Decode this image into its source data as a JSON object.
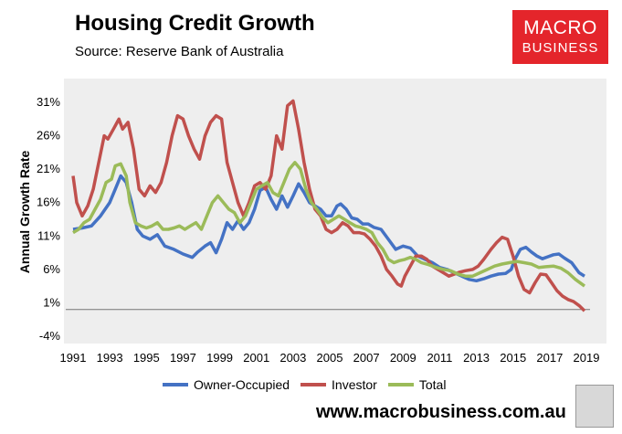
{
  "header": {
    "title": "Housing Credit Growth",
    "subtitle": "Source: Reserve Bank of Australia"
  },
  "logo": {
    "line1": "MACRO",
    "line2": "BUSINESS",
    "color": "#e4252b"
  },
  "footer": {
    "url": "www.macrobusiness.com.au",
    "icon": "wolf-icon"
  },
  "chart_data": {
    "type": "line",
    "title": "Housing Credit Growth",
    "ylabel": "Annual Growth Rate",
    "xlabel": "",
    "ylim": [
      -4,
      33
    ],
    "xlim": [
      1991,
      2019
    ],
    "yticks": [
      -4,
      1,
      6,
      11,
      16,
      21,
      26,
      31
    ],
    "ytick_labels": [
      "-4%",
      "1%",
      "6%",
      "11%",
      "16%",
      "21%",
      "26%",
      "31%"
    ],
    "xticks": [
      1991,
      1993,
      1995,
      1997,
      1999,
      2001,
      2003,
      2005,
      2007,
      2009,
      2011,
      2013,
      2015,
      2017,
      2019
    ],
    "xtick_labels": [
      "1991",
      "1993",
      "1995",
      "1997",
      "1999",
      "2001",
      "2003",
      "2005",
      "2007",
      "2009",
      "2011",
      "2013",
      "2015",
      "2017",
      "2019"
    ],
    "legend_position": "bottom",
    "series": [
      {
        "name": "Owner-Occupied",
        "color": "#4472c4",
        "points": [
          [
            1991,
            12
          ],
          [
            1991.5,
            12.2
          ],
          [
            1992,
            12.5
          ],
          [
            1992.5,
            14
          ],
          [
            1993,
            16
          ],
          [
            1993.3,
            18
          ],
          [
            1993.6,
            20
          ],
          [
            1993.9,
            19
          ],
          [
            1994.2,
            16
          ],
          [
            1994.5,
            12
          ],
          [
            1994.8,
            11
          ],
          [
            1995.2,
            10.5
          ],
          [
            1995.6,
            11.2
          ],
          [
            1996,
            9.5
          ],
          [
            1996.5,
            9
          ],
          [
            1997,
            8.3
          ],
          [
            1997.5,
            7.8
          ],
          [
            1997.8,
            8.6
          ],
          [
            1998.2,
            9.5
          ],
          [
            1998.5,
            10
          ],
          [
            1998.8,
            8.5
          ],
          [
            1999.1,
            10.5
          ],
          [
            1999.4,
            13
          ],
          [
            1999.7,
            12
          ],
          [
            2000,
            13.3
          ],
          [
            2000.3,
            12
          ],
          [
            2000.6,
            13
          ],
          [
            2000.9,
            15
          ],
          [
            2001.2,
            17.8
          ],
          [
            2001.5,
            18.3
          ],
          [
            2001.8,
            16.5
          ],
          [
            2002.1,
            15
          ],
          [
            2002.4,
            17
          ],
          [
            2002.7,
            15.3
          ],
          [
            2003,
            17
          ],
          [
            2003.3,
            18.8
          ],
          [
            2003.6,
            17.5
          ],
          [
            2003.9,
            16
          ],
          [
            2004.2,
            15.5
          ],
          [
            2004.5,
            15
          ],
          [
            2004.8,
            14
          ],
          [
            2005.1,
            14
          ],
          [
            2005.4,
            15.5
          ],
          [
            2005.6,
            15.8
          ],
          [
            2005.9,
            15
          ],
          [
            2006.2,
            13.7
          ],
          [
            2006.5,
            13.5
          ],
          [
            2006.8,
            12.8
          ],
          [
            2007.1,
            12.8
          ],
          [
            2007.4,
            12.3
          ],
          [
            2007.8,
            12
          ],
          [
            2008.2,
            10.5
          ],
          [
            2008.6,
            9
          ],
          [
            2009,
            9.5
          ],
          [
            2009.4,
            9.2
          ],
          [
            2009.8,
            8
          ],
          [
            2010.2,
            7.5
          ],
          [
            2010.6,
            7
          ],
          [
            2011,
            6.3
          ],
          [
            2011.4,
            6
          ],
          [
            2011.8,
            5.5
          ],
          [
            2012.2,
            5
          ],
          [
            2012.6,
            4.5
          ],
          [
            2013,
            4.3
          ],
          [
            2013.4,
            4.6
          ],
          [
            2013.8,
            5
          ],
          [
            2014.2,
            5.3
          ],
          [
            2014.6,
            5.4
          ],
          [
            2014.9,
            6
          ],
          [
            2015.1,
            7.5
          ],
          [
            2015.4,
            9
          ],
          [
            2015.7,
            9.3
          ],
          [
            2016,
            8.6
          ],
          [
            2016.3,
            8
          ],
          [
            2016.6,
            7.6
          ],
          [
            2016.9,
            7.9
          ],
          [
            2017.2,
            8.2
          ],
          [
            2017.5,
            8.3
          ],
          [
            2017.8,
            7.7
          ],
          [
            2018.2,
            7
          ],
          [
            2018.6,
            5.5
          ],
          [
            2018.9,
            5
          ]
        ]
      },
      {
        "name": "Investor",
        "color": "#c0504d",
        "points": [
          [
            1991,
            20
          ],
          [
            1991.2,
            16
          ],
          [
            1991.5,
            14
          ],
          [
            1991.8,
            15.5
          ],
          [
            1992.1,
            18
          ],
          [
            1992.4,
            22
          ],
          [
            1992.7,
            26
          ],
          [
            1992.9,
            25.5
          ],
          [
            1993.2,
            27
          ],
          [
            1993.5,
            28.5
          ],
          [
            1993.7,
            27
          ],
          [
            1994,
            28
          ],
          [
            1994.3,
            24
          ],
          [
            1994.6,
            18
          ],
          [
            1994.9,
            17
          ],
          [
            1995.2,
            18.5
          ],
          [
            1995.5,
            17.5
          ],
          [
            1995.8,
            19
          ],
          [
            1996.1,
            22
          ],
          [
            1996.4,
            26
          ],
          [
            1996.7,
            29
          ],
          [
            1997,
            28.5
          ],
          [
            1997.3,
            26
          ],
          [
            1997.6,
            24
          ],
          [
            1997.9,
            22.5
          ],
          [
            1998.2,
            26
          ],
          [
            1998.5,
            28
          ],
          [
            1998.8,
            29
          ],
          [
            1999.1,
            28.5
          ],
          [
            1999.4,
            22
          ],
          [
            1999.7,
            19
          ],
          [
            2000,
            16
          ],
          [
            2000.3,
            14
          ],
          [
            2000.6,
            16
          ],
          [
            2000.9,
            18.5
          ],
          [
            2001.2,
            19
          ],
          [
            2001.5,
            18
          ],
          [
            2001.8,
            20
          ],
          [
            2002.1,
            26
          ],
          [
            2002.4,
            24
          ],
          [
            2002.7,
            30.5
          ],
          [
            2003,
            31.2
          ],
          [
            2003.3,
            27
          ],
          [
            2003.6,
            22
          ],
          [
            2003.9,
            18
          ],
          [
            2004.2,
            15
          ],
          [
            2004.5,
            14
          ],
          [
            2004.8,
            12
          ],
          [
            2005.1,
            11.5
          ],
          [
            2005.4,
            12
          ],
          [
            2005.7,
            13
          ],
          [
            2006,
            12.5
          ],
          [
            2006.3,
            11.5
          ],
          [
            2006.6,
            11.5
          ],
          [
            2006.9,
            11.3
          ],
          [
            2007.2,
            10.5
          ],
          [
            2007.5,
            9.5
          ],
          [
            2007.8,
            8
          ],
          [
            2008.1,
            6
          ],
          [
            2008.4,
            5
          ],
          [
            2008.7,
            3.8
          ],
          [
            2008.9,
            3.5
          ],
          [
            2009.1,
            5
          ],
          [
            2009.4,
            6.5
          ],
          [
            2009.7,
            8
          ],
          [
            2010,
            8
          ],
          [
            2010.3,
            7.5
          ],
          [
            2010.6,
            6.5
          ],
          [
            2010.9,
            6
          ],
          [
            2011.2,
            5.5
          ],
          [
            2011.5,
            5
          ],
          [
            2011.8,
            5.3
          ],
          [
            2012.1,
            5.6
          ],
          [
            2012.4,
            5.8
          ],
          [
            2012.8,
            6
          ],
          [
            2013.1,
            6.5
          ],
          [
            2013.4,
            7.5
          ],
          [
            2013.8,
            9
          ],
          [
            2014.1,
            10
          ],
          [
            2014.4,
            10.8
          ],
          [
            2014.7,
            10.5
          ],
          [
            2015,
            8
          ],
          [
            2015.3,
            5
          ],
          [
            2015.6,
            3
          ],
          [
            2015.9,
            2.5
          ],
          [
            2016.2,
            4
          ],
          [
            2016.5,
            5.3
          ],
          [
            2016.8,
            5.2
          ],
          [
            2017.1,
            4
          ],
          [
            2017.4,
            2.8
          ],
          [
            2017.7,
            2
          ],
          [
            2018,
            1.5
          ],
          [
            2018.3,
            1.2
          ],
          [
            2018.6,
            0.6
          ],
          [
            2018.9,
            -0.2
          ]
        ]
      },
      {
        "name": "Total",
        "color": "#9bbb59",
        "points": [
          [
            1991,
            11.5
          ],
          [
            1991.3,
            12
          ],
          [
            1991.6,
            13
          ],
          [
            1991.9,
            13.5
          ],
          [
            1992.2,
            15
          ],
          [
            1992.5,
            16.5
          ],
          [
            1992.8,
            19
          ],
          [
            1993.1,
            19.5
          ],
          [
            1993.3,
            21.5
          ],
          [
            1993.6,
            21.8
          ],
          [
            1993.9,
            20
          ],
          [
            1994.1,
            16
          ],
          [
            1994.4,
            13
          ],
          [
            1994.7,
            12.5
          ],
          [
            1995,
            12.2
          ],
          [
            1995.3,
            12.5
          ],
          [
            1995.6,
            13
          ],
          [
            1995.9,
            12
          ],
          [
            1996.2,
            12
          ],
          [
            1996.5,
            12.2
          ],
          [
            1996.8,
            12.5
          ],
          [
            1997.1,
            12
          ],
          [
            1997.4,
            12.5
          ],
          [
            1997.7,
            13
          ],
          [
            1998,
            12
          ],
          [
            1998.3,
            14
          ],
          [
            1998.6,
            16
          ],
          [
            1998.9,
            17
          ],
          [
            1999.2,
            16
          ],
          [
            1999.5,
            15
          ],
          [
            1999.8,
            14.5
          ],
          [
            2000.1,
            13
          ],
          [
            2000.4,
            14
          ],
          [
            2000.7,
            16
          ],
          [
            2001,
            18
          ],
          [
            2001.3,
            18.5
          ],
          [
            2001.6,
            19
          ],
          [
            2001.9,
            17.5
          ],
          [
            2002.2,
            17
          ],
          [
            2002.5,
            19
          ],
          [
            2002.8,
            21
          ],
          [
            2003.1,
            22
          ],
          [
            2003.4,
            21
          ],
          [
            2003.7,
            18
          ],
          [
            2004,
            16
          ],
          [
            2004.3,
            15
          ],
          [
            2004.6,
            13.8
          ],
          [
            2004.9,
            13
          ],
          [
            2005.2,
            13.5
          ],
          [
            2005.5,
            14
          ],
          [
            2005.8,
            13.5
          ],
          [
            2006.1,
            13
          ],
          [
            2006.4,
            12.5
          ],
          [
            2006.7,
            12.3
          ],
          [
            2007,
            12
          ],
          [
            2007.3,
            11.5
          ],
          [
            2007.6,
            10
          ],
          [
            2007.9,
            9
          ],
          [
            2008.2,
            7.5
          ],
          [
            2008.5,
            7
          ],
          [
            2008.8,
            7.3
          ],
          [
            2009.1,
            7.5
          ],
          [
            2009.4,
            7.8
          ],
          [
            2009.7,
            7.5
          ],
          [
            2010,
            7
          ],
          [
            2010.4,
            6.7
          ],
          [
            2010.8,
            6.3
          ],
          [
            2011.2,
            6
          ],
          [
            2011.6,
            5.8
          ],
          [
            2012,
            5.3
          ],
          [
            2012.4,
            5
          ],
          [
            2012.8,
            5
          ],
          [
            2013.2,
            5.5
          ],
          [
            2013.6,
            6
          ],
          [
            2014,
            6.5
          ],
          [
            2014.4,
            6.8
          ],
          [
            2014.8,
            7
          ],
          [
            2015.2,
            7.2
          ],
          [
            2015.6,
            7
          ],
          [
            2016,
            6.8
          ],
          [
            2016.4,
            6.3
          ],
          [
            2016.8,
            6.4
          ],
          [
            2017.2,
            6.5
          ],
          [
            2017.6,
            6.2
          ],
          [
            2018,
            5.5
          ],
          [
            2018.4,
            4.5
          ],
          [
            2018.9,
            3.5
          ]
        ]
      }
    ]
  }
}
